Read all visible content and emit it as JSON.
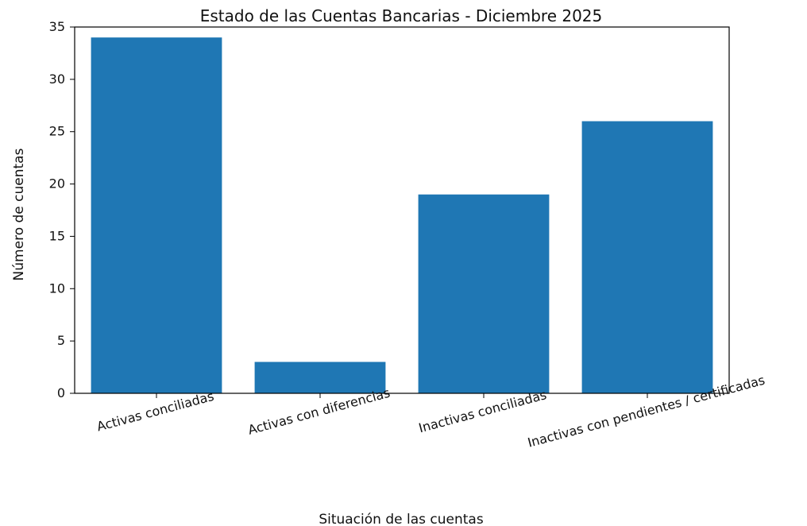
{
  "chart_data": {
    "type": "bar",
    "title": "Estado de las Cuentas Bancarias - Diciembre 2025",
    "xlabel": "Situación de las cuentas",
    "ylabel": "Número de cuentas",
    "categories": [
      "Activas conciliadas",
      "Activas con diferencias",
      "Inactivas conciliadas",
      "Inactivas con pendientes / certificadas"
    ],
    "values": [
      34,
      3,
      19,
      26
    ],
    "ylim": [
      0,
      35
    ],
    "yticks": [
      0,
      5,
      10,
      15,
      20,
      25,
      30,
      35
    ],
    "grid": false,
    "legend": "none",
    "bar_color": "#1f77b4"
  }
}
